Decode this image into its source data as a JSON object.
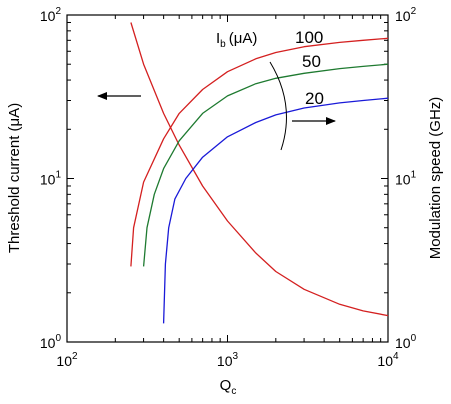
{
  "chart_data": {
    "type": "line",
    "title": "",
    "x_axis": {
      "label_main": "Q",
      "label_sub": "c",
      "scale": "log",
      "range": [
        100,
        10000
      ],
      "ticks": [
        {
          "value": 100,
          "base": "10",
          "exp": "2"
        },
        {
          "value": 1000,
          "base": "10",
          "exp": "3"
        },
        {
          "value": 10000,
          "base": "10",
          "exp": "4"
        }
      ]
    },
    "y_left": {
      "label": "Threshold current (μA)",
      "scale": "log",
      "range": [
        1,
        100
      ],
      "ticks": [
        {
          "value": 1,
          "base": "10",
          "exp": "0"
        },
        {
          "value": 10,
          "base": "10",
          "exp": "1"
        },
        {
          "value": 100,
          "base": "10",
          "exp": "2"
        }
      ]
    },
    "y_right": {
      "label": "Modulation speed (GHz)",
      "scale": "log",
      "range": [
        1,
        100
      ],
      "ticks": [
        {
          "value": 1,
          "base": "10",
          "exp": "0"
        },
        {
          "value": 10,
          "base": "10",
          "exp": "1"
        },
        {
          "value": 100,
          "base": "10",
          "exp": "2"
        }
      ]
    },
    "grid": false,
    "annotations": {
      "ib_label_main": "I",
      "ib_label_sub": "b",
      "ib_label_unit": "(μA)",
      "left_arrow_axis": "left",
      "right_arrow_axis": "right"
    },
    "series": [
      {
        "axis": "left",
        "color": "#d42020",
        "x": [
          250,
          300,
          400,
          500,
          700,
          1000,
          1500,
          2000,
          3000,
          5000,
          7000,
          10000
        ],
        "y": [
          90,
          50,
          25,
          16,
          9,
          5.5,
          3.5,
          2.7,
          2.1,
          1.7,
          1.55,
          1.45
        ]
      },
      {
        "axis": "right",
        "name": "100",
        "color": "#d42020",
        "x": [
          250,
          260,
          300,
          400,
          500,
          700,
          1000,
          1500,
          2000,
          3000,
          5000,
          7000,
          10000
        ],
        "y": [
          2.9,
          5,
          9.5,
          17.5,
          25,
          35,
          45,
          54,
          59,
          64,
          68,
          70,
          72
        ]
      },
      {
        "axis": "right",
        "name": "50",
        "color": "#1e7a30",
        "x": [
          300,
          315,
          350,
          400,
          500,
          700,
          1000,
          1500,
          2000,
          3000,
          5000,
          7000,
          10000
        ],
        "y": [
          2.9,
          5,
          8,
          11.5,
          17,
          25,
          32,
          38,
          41,
          44,
          47,
          48.5,
          50
        ]
      },
      {
        "axis": "right",
        "name": "20",
        "color": "#1a1ad8",
        "x": [
          400,
          410,
          430,
          470,
          550,
          700,
          1000,
          1500,
          2000,
          3000,
          5000,
          7000,
          10000
        ],
        "y": [
          1.3,
          3,
          5,
          7.5,
          10,
          13.5,
          18,
          22,
          24.5,
          27,
          29,
          30,
          31
        ]
      }
    ]
  }
}
